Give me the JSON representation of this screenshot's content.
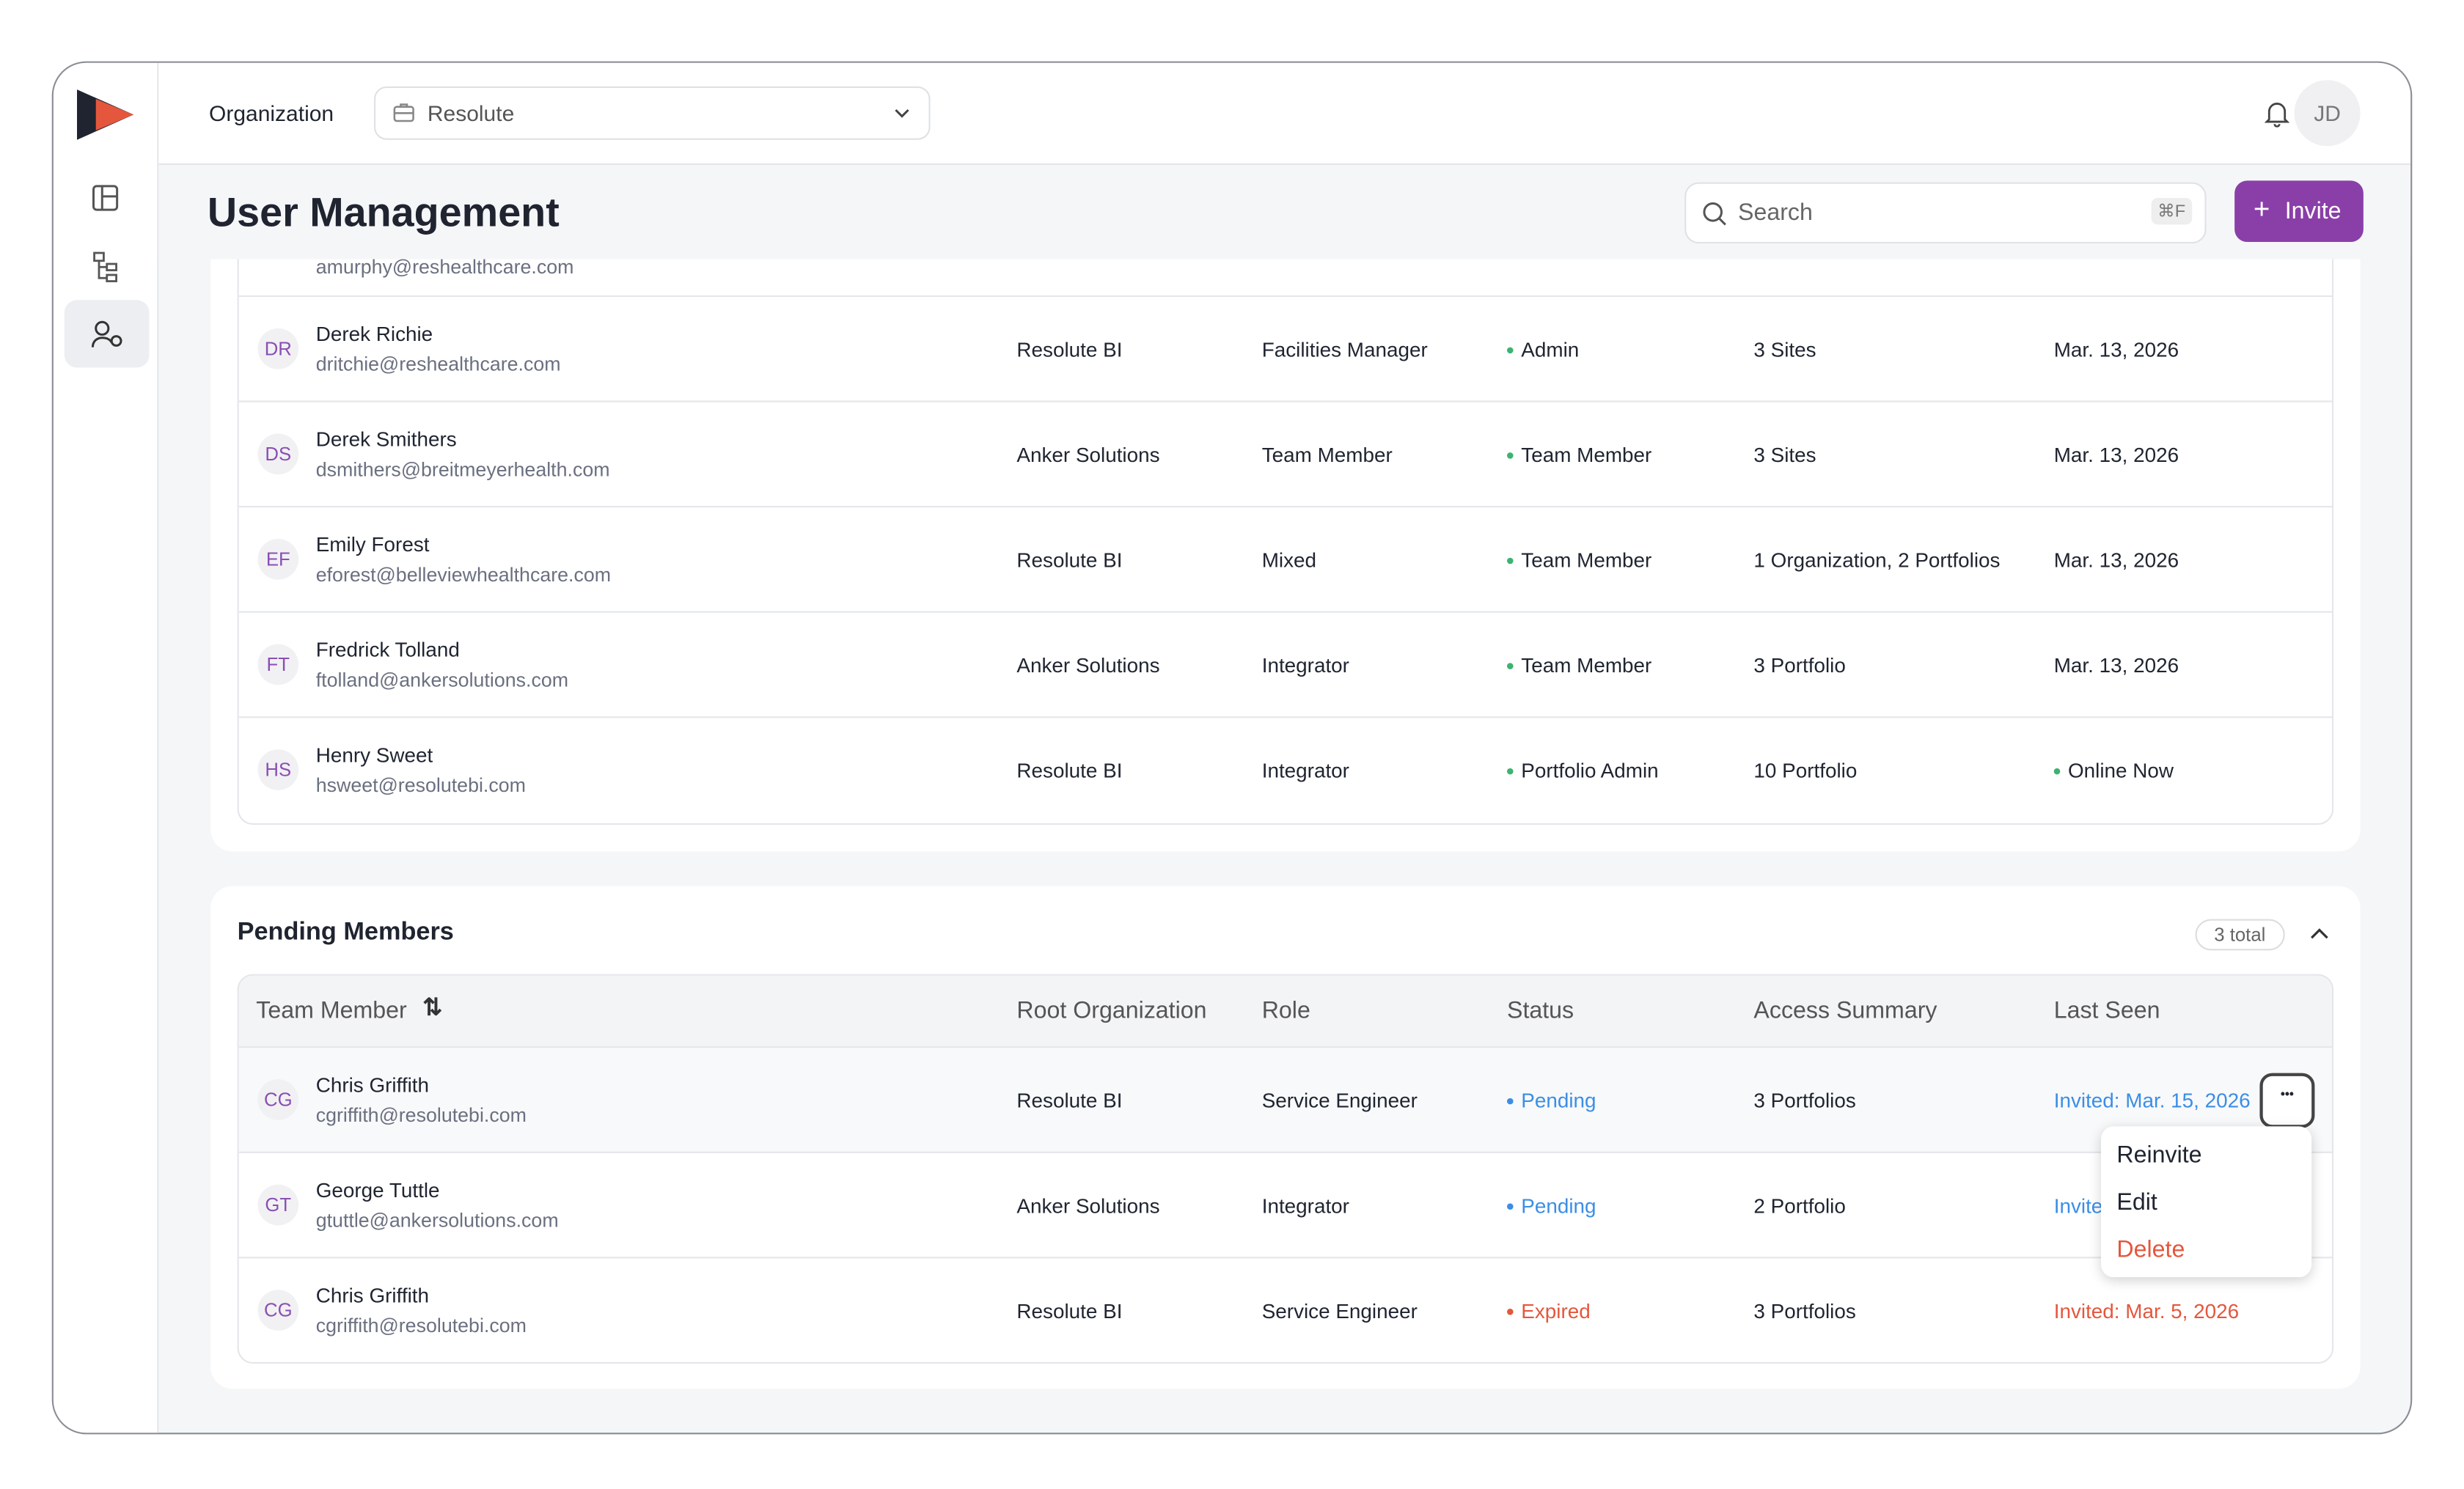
{
  "header": {
    "org_label": "Organization",
    "org_value": "Resolute",
    "avatar": "JD"
  },
  "page": {
    "title": "User Management",
    "search_placeholder": "Search",
    "search_shortcut": "⌘F",
    "invite_button": "Invite"
  },
  "members": {
    "partial_row": {
      "email": "amurphy@reshealthcare.com"
    },
    "rows": [
      [
        "DR",
        "Derek Richie",
        "dritchie@reshealthcare.com",
        "Resolute BI",
        "Facilities Manager",
        "Admin",
        "3 Sites",
        "Mar. 13, 2026"
      ],
      [
        "DS",
        "Derek Smithers",
        "dsmithers@breitmeyerhealth.com",
        "Anker Solutions",
        "Team Member",
        "Team Member",
        "3 Sites",
        "Mar. 13, 2026"
      ],
      [
        "EF",
        "Emily Forest",
        "eforest@belleviewhealthcare.com",
        "Resolute BI",
        "Mixed",
        "Team Member",
        "1 Organization, 2 Portfolios",
        "Mar. 13, 2026"
      ],
      [
        "FT",
        "Fredrick Tolland",
        "ftolland@ankersolutions.com",
        "Anker Solutions",
        "Integrator",
        "Team Member",
        "3 Portfolio",
        "Mar. 13, 2026"
      ],
      [
        "HS",
        "Henry Sweet",
        "hsweet@resolutebi.com",
        "Resolute BI",
        "Integrator",
        "Portfolio Admin",
        "10 Portfolio",
        "Online Now"
      ]
    ]
  },
  "pending": {
    "title": "Pending Members",
    "count": "3 total",
    "columns": [
      "Team Member",
      "Root Organization",
      "Role",
      "Status",
      "Access Summary",
      "Last Seen"
    ],
    "rows": [
      [
        "CG",
        "Chris Griffith",
        "cgriffith@resolutebi.com",
        "Resolute BI",
        "Service Engineer",
        "Pending",
        "3 Portfolios",
        "Invited: Mar. 15, 2026"
      ],
      [
        "GT",
        "George Tuttle",
        "gtuttle@ankersolutions.com",
        "Anker Solutions",
        "Integrator",
        "Pending",
        "2 Portfolio",
        "Invite"
      ],
      [
        "CG",
        "Chris Griffith",
        "cgriffith@resolutebi.com",
        "Resolute BI",
        "Service Engineer",
        "Expired",
        "3 Portfolios",
        "Invited: Mar. 5, 2026"
      ]
    ],
    "menu": [
      "Reinvite",
      "Edit",
      "Delete"
    ]
  }
}
